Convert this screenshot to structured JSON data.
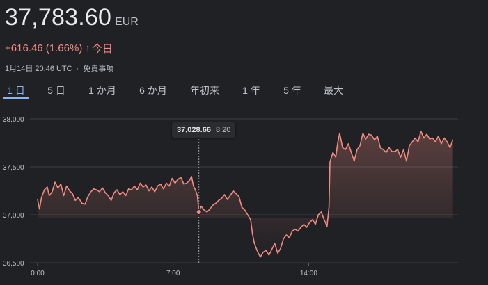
{
  "quote": {
    "price": "37,783.60",
    "currency": "EUR",
    "change": "+616.46 (1.66%)",
    "change_arrow": "↑",
    "period_label": "今日",
    "timestamp": "1月14日 20:46 UTC",
    "separator": "·",
    "disclaimer_link": "免責事項"
  },
  "tabs": [
    {
      "label": "1 日",
      "active": true
    },
    {
      "label": "5 日",
      "active": false
    },
    {
      "label": "1 か月",
      "active": false
    },
    {
      "label": "6 か月",
      "active": false
    },
    {
      "label": "年初来",
      "active": false
    },
    {
      "label": "1 年",
      "active": false
    },
    {
      "label": "5 年",
      "active": false
    },
    {
      "label": "最大",
      "active": false
    }
  ],
  "tooltip": {
    "value": "37,028.66",
    "time": "8:20"
  },
  "colors": {
    "line": "#f28b82",
    "accent": "#8ab4f8",
    "background": "#202124",
    "grid": "#3c4043"
  },
  "chart_data": {
    "type": "area",
    "x_unit": "hours (UTC)",
    "ylim": [
      36500,
      38000
    ],
    "yticks": [
      "38,000",
      "37,500",
      "37,000",
      "36,500"
    ],
    "ytick_values": [
      38000,
      37500,
      37000,
      36500
    ],
    "xticks": [
      "0:00",
      "7:00",
      "14:00"
    ],
    "xtick_values": [
      0,
      7,
      14
    ],
    "x_range": [
      0,
      21.5
    ],
    "grid": true,
    "hover": {
      "x": 8.33,
      "y": 37028.66
    },
    "series": [
      {
        "points": [
          [
            0,
            37160
          ],
          [
            0.1,
            37060
          ],
          [
            0.2,
            37180
          ],
          [
            0.35,
            37260
          ],
          [
            0.5,
            37290
          ],
          [
            0.6,
            37200
          ],
          [
            0.75,
            37240
          ],
          [
            0.9,
            37340
          ],
          [
            1.05,
            37280
          ],
          [
            1.2,
            37320
          ],
          [
            1.35,
            37200
          ],
          [
            1.5,
            37300
          ],
          [
            1.65,
            37250
          ],
          [
            1.8,
            37220
          ],
          [
            1.95,
            37150
          ],
          [
            2.1,
            37180
          ],
          [
            2.3,
            37120
          ],
          [
            2.45,
            37110
          ],
          [
            2.6,
            37190
          ],
          [
            2.75,
            37240
          ],
          [
            2.9,
            37270
          ],
          [
            3.05,
            37260
          ],
          [
            3.2,
            37240
          ],
          [
            3.35,
            37280
          ],
          [
            3.5,
            37230
          ],
          [
            3.65,
            37200
          ],
          [
            3.8,
            37150
          ],
          [
            3.95,
            37230
          ],
          [
            4.1,
            37260
          ],
          [
            4.25,
            37210
          ],
          [
            4.4,
            37240
          ],
          [
            4.55,
            37200
          ],
          [
            4.7,
            37270
          ],
          [
            4.85,
            37260
          ],
          [
            5.0,
            37300
          ],
          [
            5.15,
            37260
          ],
          [
            5.3,
            37330
          ],
          [
            5.45,
            37290
          ],
          [
            5.6,
            37310
          ],
          [
            5.75,
            37250
          ],
          [
            5.9,
            37290
          ],
          [
            6.05,
            37240
          ],
          [
            6.2,
            37300
          ],
          [
            6.35,
            37320
          ],
          [
            6.5,
            37270
          ],
          [
            6.65,
            37330
          ],
          [
            6.8,
            37300
          ],
          [
            6.95,
            37380
          ],
          [
            7.1,
            37330
          ],
          [
            7.25,
            37370
          ],
          [
            7.4,
            37390
          ],
          [
            7.55,
            37320
          ],
          [
            7.7,
            37330
          ],
          [
            7.85,
            37360
          ],
          [
            7.95,
            37400
          ],
          [
            8.05,
            37300
          ],
          [
            8.15,
            37260
          ],
          [
            8.25,
            37200
          ],
          [
            8.33,
            37028.66
          ],
          [
            8.45,
            37090
          ],
          [
            8.6,
            37050
          ],
          [
            8.75,
            37030
          ],
          [
            8.9,
            37060
          ],
          [
            9.05,
            37100
          ],
          [
            9.2,
            37120
          ],
          [
            9.35,
            37150
          ],
          [
            9.5,
            37170
          ],
          [
            9.65,
            37210
          ],
          [
            9.8,
            37160
          ],
          [
            9.95,
            37200
          ],
          [
            10.1,
            37250
          ],
          [
            10.25,
            37220
          ],
          [
            10.4,
            37190
          ],
          [
            10.55,
            37080
          ],
          [
            10.7,
            37050
          ],
          [
            10.85,
            37000
          ],
          [
            11.0,
            36950
          ],
          [
            11.1,
            36800
          ],
          [
            11.2,
            36700
          ],
          [
            11.35,
            36620
          ],
          [
            11.5,
            36560
          ],
          [
            11.65,
            36610
          ],
          [
            11.8,
            36630
          ],
          [
            11.95,
            36580
          ],
          [
            12.1,
            36640
          ],
          [
            12.25,
            36700
          ],
          [
            12.4,
            36600
          ],
          [
            12.55,
            36650
          ],
          [
            12.7,
            36750
          ],
          [
            12.85,
            36790
          ],
          [
            13.0,
            36760
          ],
          [
            13.15,
            36830
          ],
          [
            13.3,
            36850
          ],
          [
            13.45,
            36830
          ],
          [
            13.6,
            36870
          ],
          [
            13.75,
            36900
          ],
          [
            13.9,
            36870
          ],
          [
            14.05,
            36920
          ],
          [
            14.2,
            36950
          ],
          [
            14.35,
            36900
          ],
          [
            14.5,
            37000
          ],
          [
            14.65,
            37030
          ],
          [
            14.8,
            36950
          ],
          [
            14.95,
            36880
          ],
          [
            15.05,
            37080
          ],
          [
            15.1,
            37550
          ],
          [
            15.25,
            37650
          ],
          [
            15.4,
            37600
          ],
          [
            15.5,
            37750
          ],
          [
            15.6,
            37850
          ],
          [
            15.75,
            37700
          ],
          [
            15.9,
            37680
          ],
          [
            16.05,
            37740
          ],
          [
            16.2,
            37650
          ],
          [
            16.35,
            37560
          ],
          [
            16.5,
            37680
          ],
          [
            16.65,
            37720
          ],
          [
            16.8,
            37850
          ],
          [
            16.95,
            37790
          ],
          [
            17.1,
            37840
          ],
          [
            17.25,
            37830
          ],
          [
            17.4,
            37780
          ],
          [
            17.55,
            37820
          ],
          [
            17.7,
            37700
          ],
          [
            17.85,
            37680
          ],
          [
            18.0,
            37650
          ],
          [
            18.15,
            37700
          ],
          [
            18.3,
            37660
          ],
          [
            18.45,
            37660
          ],
          [
            18.6,
            37680
          ],
          [
            18.75,
            37600
          ],
          [
            18.9,
            37680
          ],
          [
            19.05,
            37560
          ],
          [
            19.2,
            37720
          ],
          [
            19.35,
            37760
          ],
          [
            19.5,
            37800
          ],
          [
            19.65,
            37760
          ],
          [
            19.8,
            37870
          ],
          [
            19.95,
            37800
          ],
          [
            20.1,
            37840
          ],
          [
            20.25,
            37790
          ],
          [
            20.4,
            37800
          ],
          [
            20.55,
            37760
          ],
          [
            20.7,
            37820
          ],
          [
            20.85,
            37740
          ],
          [
            21.0,
            37800
          ],
          [
            21.15,
            37760
          ],
          [
            21.3,
            37700
          ],
          [
            21.45,
            37784
          ]
        ]
      }
    ]
  }
}
